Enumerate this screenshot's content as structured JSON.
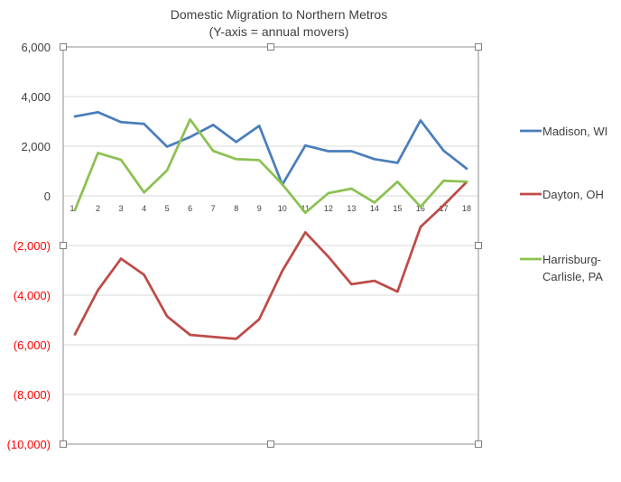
{
  "chart_data": {
    "type": "line",
    "title": "Domestic Migration to Northern Metros",
    "subtitle": "(Y-axis = annual movers)",
    "xlabel": "",
    "ylabel": "",
    "x": [
      1,
      2,
      3,
      4,
      5,
      6,
      7,
      8,
      9,
      10,
      11,
      12,
      13,
      14,
      15,
      16,
      17,
      18
    ],
    "ylim": [
      -10000,
      6000
    ],
    "yticks": [
      6000,
      4000,
      2000,
      0,
      -2000,
      -4000,
      -6000,
      -8000,
      -10000
    ],
    "ytick_labels": [
      "6,000",
      "4,000",
      "2,000",
      "0",
      "(2,000)",
      "(4,000)",
      "(6,000)",
      "(8,000)",
      "(10,000)"
    ],
    "negative_tick_color": "#ff0000",
    "positive_tick_color": "#404040",
    "grid": true,
    "legend_position": "right",
    "series": [
      {
        "name": "Madison, WI",
        "color": "#4a7ebb",
        "values": [
          3200,
          3370,
          2970,
          2900,
          1980,
          2370,
          2860,
          2170,
          2820,
          450,
          2030,
          1800,
          1800,
          1480,
          1330,
          3040,
          1820,
          1100
        ]
      },
      {
        "name": "Dayton, OH",
        "color": "#be4b48",
        "values": [
          -5580,
          -3800,
          -2530,
          -3180,
          -4850,
          -5600,
          -5680,
          -5760,
          -4970,
          -3020,
          -1470,
          -2450,
          -3560,
          -3420,
          -3860,
          -1250,
          -380,
          560
        ]
      },
      {
        "name": "Harrisburg-Carlisle, PA",
        "legend_lines": [
          "Harrisburg-",
          "Carlisle, PA"
        ],
        "color": "#8cc152",
        "values": [
          -580,
          1730,
          1450,
          140,
          1030,
          3080,
          1810,
          1480,
          1440,
          470,
          -680,
          110,
          290,
          -270,
          570,
          -440,
          610,
          570
        ]
      }
    ]
  }
}
